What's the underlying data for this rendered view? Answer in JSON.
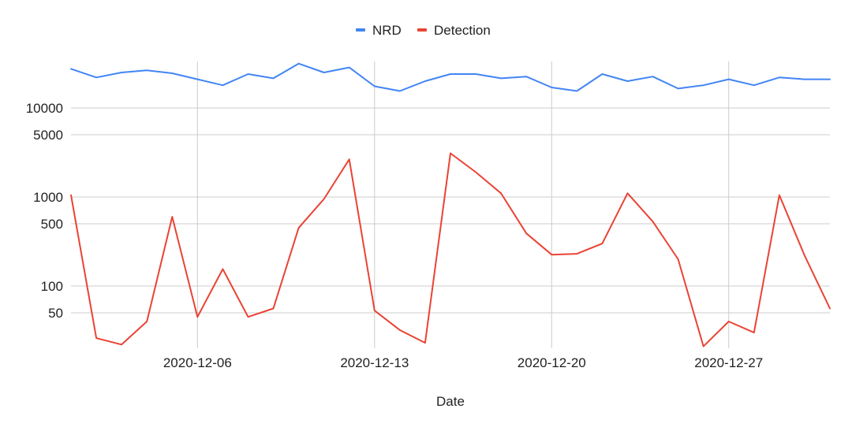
{
  "chart_data": {
    "type": "line",
    "y_scale": "log",
    "grid": true,
    "legend_position": "top",
    "xlabel": "Date",
    "ylabel": "",
    "x": [
      "2020-12-01",
      "2020-12-02",
      "2020-12-03",
      "2020-12-04",
      "2020-12-05",
      "2020-12-06",
      "2020-12-07",
      "2020-12-08",
      "2020-12-09",
      "2020-12-10",
      "2020-12-11",
      "2020-12-12",
      "2020-12-13",
      "2020-12-14",
      "2020-12-15",
      "2020-12-16",
      "2020-12-17",
      "2020-12-18",
      "2020-12-19",
      "2020-12-20",
      "2020-12-21",
      "2020-12-22",
      "2020-12-23",
      "2020-12-24",
      "2020-12-25",
      "2020-12-26",
      "2020-12-27",
      "2020-12-28",
      "2020-12-29",
      "2020-12-30",
      "2020-12-31"
    ],
    "x_ticks": [
      "2020-12-06",
      "2020-12-13",
      "2020-12-20",
      "2020-12-27"
    ],
    "y_ticks": [
      50,
      100,
      500,
      1000,
      5000,
      10000
    ],
    "y_tick_labels": [
      "50",
      "100",
      "500",
      "1000",
      "5000",
      "10000"
    ],
    "ylim": [
      18,
      40000
    ],
    "series": [
      {
        "name": "NRD",
        "color": "#4285f4",
        "values": [
          27500,
          22000,
          25000,
          26500,
          24500,
          21000,
          18000,
          24000,
          21500,
          31500,
          25000,
          28500,
          17500,
          15500,
          20000,
          24000,
          24000,
          21500,
          22500,
          17000,
          15500,
          24000,
          20000,
          22500,
          16500,
          18000,
          21000,
          18000,
          22000,
          21000,
          21000
        ]
      },
      {
        "name": "Detection",
        "color": "#ea4335",
        "values": [
          1050,
          26,
          22,
          40,
          600,
          45,
          155,
          45,
          56,
          450,
          950,
          2650,
          53,
          32,
          23,
          3100,
          1900,
          1100,
          390,
          225,
          230,
          300,
          1100,
          530,
          200,
          21,
          40,
          30,
          1050,
          220,
          56
        ]
      }
    ]
  }
}
